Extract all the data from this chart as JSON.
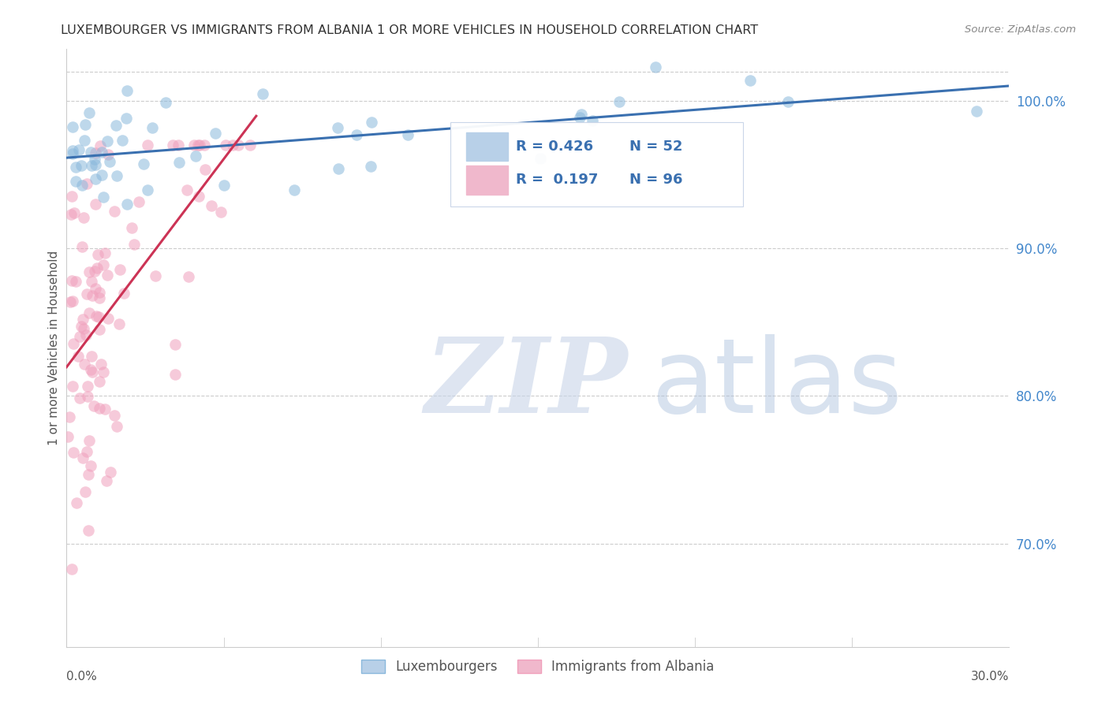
{
  "title": "LUXEMBOURGER VS IMMIGRANTS FROM ALBANIA 1 OR MORE VEHICLES IN HOUSEHOLD CORRELATION CHART",
  "source": "Source: ZipAtlas.com",
  "ylabel": "1 or more Vehicles in Household",
  "yticks": [
    70.0,
    80.0,
    90.0,
    100.0
  ],
  "xmin": 0.0,
  "xmax": 30.0,
  "ymin": 63.0,
  "ymax": 103.5,
  "luxembourgers_color": "#8ab8dc",
  "albania_color": "#f0a0bc",
  "trend_blue_color": "#3a70b0",
  "trend_pink_color": "#cc3355",
  "watermark_zip_color": "#c8d4e8",
  "watermark_atlas_color": "#aac0dc",
  "background_color": "#ffffff",
  "lux_R": 0.426,
  "lux_N": 52,
  "alb_R": 0.197,
  "alb_N": 96,
  "legend_box_color": "#f0f4fa",
  "legend_border_color": "#ccddee",
  "r_text_color": "#3a70b0",
  "n_text_color": "#3a70b0"
}
